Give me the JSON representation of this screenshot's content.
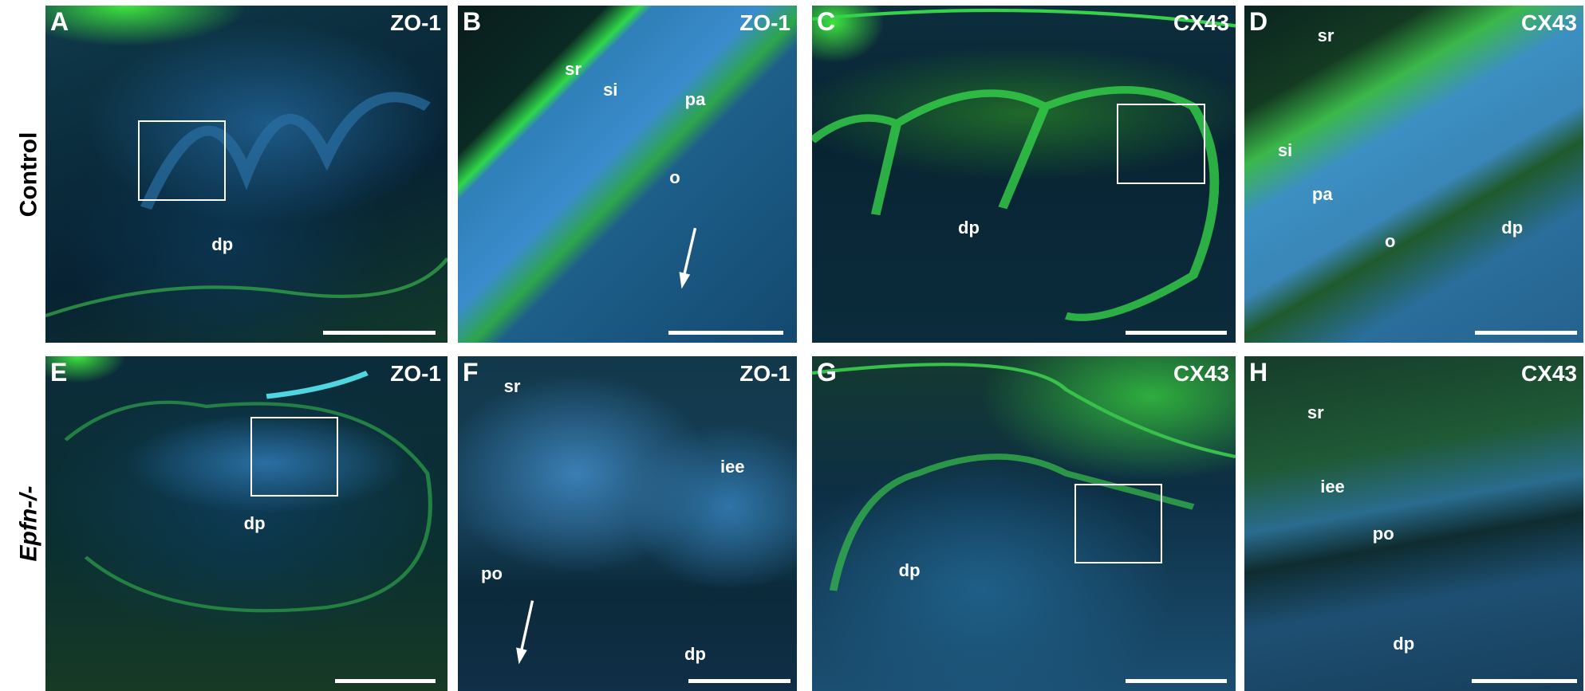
{
  "row_labels": [
    "Control",
    "Epfn-/-"
  ],
  "panels": {
    "A": {
      "letter": "A",
      "marker": "ZO-1",
      "labels": [
        "dp"
      ]
    },
    "B": {
      "letter": "B",
      "marker": "ZO-1",
      "labels": [
        "sr",
        "si",
        "pa",
        "o"
      ]
    },
    "C": {
      "letter": "C",
      "marker": "CX43",
      "labels": [
        "dp"
      ]
    },
    "D": {
      "letter": "D",
      "marker": "CX43",
      "labels": [
        "sr",
        "si",
        "pa",
        "o",
        "dp"
      ]
    },
    "E": {
      "letter": "E",
      "marker": "ZO-1",
      "labels": [
        "dp"
      ]
    },
    "F": {
      "letter": "F",
      "marker": "ZO-1",
      "labels": [
        "sr",
        "iee",
        "po",
        "dp"
      ]
    },
    "G": {
      "letter": "G",
      "marker": "CX43",
      "labels": [
        "dp"
      ]
    },
    "H": {
      "letter": "H",
      "marker": "CX43",
      "labels": [
        "sr",
        "iee",
        "po",
        "dp"
      ]
    }
  },
  "colors": {
    "nuclear_stain": "#2f7fb8",
    "marker_stain": "#2fd84a",
    "background": "#06202e"
  }
}
